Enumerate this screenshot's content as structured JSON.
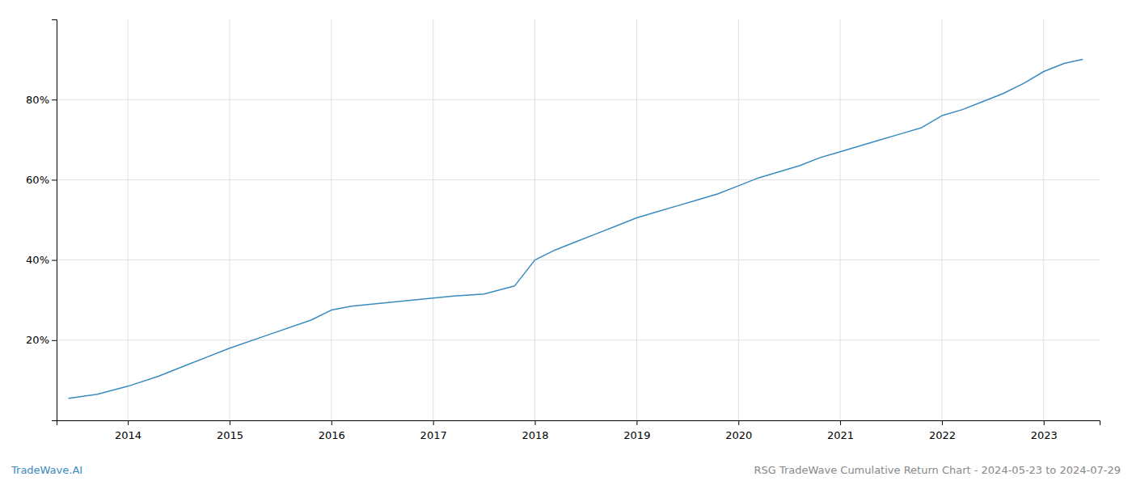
{
  "chart_data": {
    "type": "line",
    "x": [
      2013.42,
      2013.7,
      2014.0,
      2014.3,
      2014.6,
      2015.0,
      2015.4,
      2015.8,
      2016.0,
      2016.2,
      2016.4,
      2016.6,
      2016.8,
      2017.0,
      2017.2,
      2017.5,
      2017.8,
      2018.0,
      2018.2,
      2018.4,
      2018.6,
      2018.8,
      2019.0,
      2019.2,
      2019.4,
      2019.6,
      2019.8,
      2020.0,
      2020.2,
      2020.4,
      2020.6,
      2020.8,
      2021.0,
      2021.2,
      2021.4,
      2021.6,
      2021.8,
      2022.0,
      2022.2,
      2022.4,
      2022.6,
      2022.8,
      2023.0,
      2023.2,
      2023.38
    ],
    "values": [
      5.5,
      6.5,
      8.5,
      11.0,
      14.0,
      18.0,
      21.5,
      25.0,
      27.5,
      28.5,
      29.0,
      29.5,
      30.0,
      30.5,
      31.0,
      31.5,
      33.5,
      40.0,
      42.5,
      44.5,
      46.5,
      48.5,
      50.5,
      52.0,
      53.5,
      55.0,
      56.5,
      58.5,
      60.5,
      62.0,
      63.5,
      65.5,
      67.0,
      68.5,
      70.0,
      71.5,
      73.0,
      76.0,
      77.5,
      79.5,
      81.5,
      84.0,
      87.0,
      89.0,
      90.0
    ],
    "color": "#3a8bbf",
    "xlim": [
      2013.3,
      2023.55
    ],
    "xticks": [
      2014,
      2015,
      2016,
      2017,
      2018,
      2019,
      2020,
      2021,
      2022,
      2023
    ],
    "ylim": [
      0,
      100
    ],
    "yticks": [
      {
        "value": 20,
        "label": "20%"
      },
      {
        "value": 40,
        "label": "40%"
      },
      {
        "value": 60,
        "label": "60%"
      },
      {
        "value": 80,
        "label": "80%"
      }
    ],
    "grid": true,
    "annotations": [
      {
        "text": "TradeWave.AI",
        "color": "#3a8bbf"
      },
      {
        "text": "RSG TradeWave Cumulative Return Chart - 2024-05-23 to 2024-07-29",
        "color": "#888888"
      }
    ]
  }
}
